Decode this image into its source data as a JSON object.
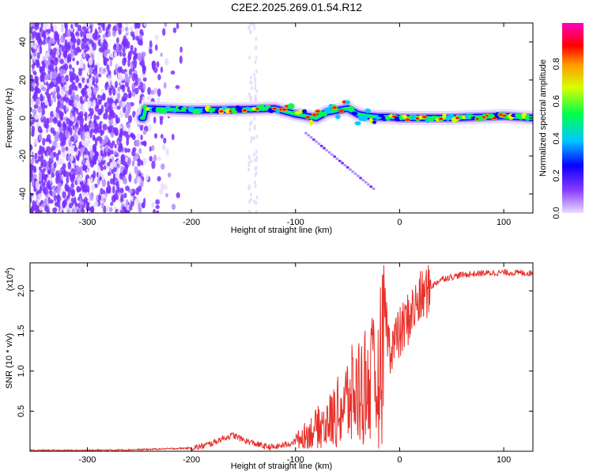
{
  "title": "C2E2.2025.269.01.54.R12",
  "chart_data": [
    {
      "type": "heatmap",
      "xlabel": "Height of straight line (km)",
      "ylabel": "Frequency (Hz)",
      "xlim": [
        -355,
        128
      ],
      "ylim": [
        -50,
        50
      ],
      "xticks": [
        -300,
        -200,
        -100,
        0,
        100
      ],
      "yticks": [
        -40,
        -20,
        0,
        20,
        40
      ],
      "colorbar": {
        "label": "Normalized spectral amplitude",
        "range": [
          0,
          1
        ],
        "ticks": [
          "0.0",
          "0.2",
          "0.4",
          "0.6",
          "0.8"
        ]
      },
      "colors": [
        "#ffffff",
        "#e9dcff",
        "#b58dff",
        "#7a2fff",
        "#0a00ff",
        "#00c8ff",
        "#00ff4c",
        "#d8ff00",
        "#ff9a00",
        "#ff0000",
        "#ff00c0"
      ],
      "ridge": {
        "x": [
          -245,
          -200,
          -150,
          -120,
          -100,
          -90,
          -80,
          -70,
          -60,
          -50,
          -40,
          -30,
          -20,
          -10,
          0,
          20,
          50,
          100,
          128
        ],
        "y": [
          5,
          4,
          4.5,
          5,
          2,
          1,
          0,
          3,
          4,
          5,
          2,
          1,
          0.5,
          0.5,
          0,
          0,
          0,
          1,
          0
        ]
      }
    },
    {
      "type": "line",
      "xlabel": "Height of straight line (km)",
      "ylabel": "SNR (10 * v/v)",
      "multiplier": "(x10",
      "multiplier_exp": "4",
      "xlim": [
        -355,
        128
      ],
      "ylim": [
        0,
        2.35
      ],
      "xticks": [
        -300,
        -200,
        -100,
        0,
        100
      ],
      "yticks": [
        0.5,
        1.0,
        1.5,
        2.0
      ],
      "ytick_labels": [
        "0.5",
        "1.0",
        "1.5",
        "2.0"
      ],
      "color": "#e8302a",
      "series": [
        {
          "name": "SNR",
          "x": [
            -355,
            -300,
            -250,
            -200,
            -190,
            -180,
            -170,
            -160,
            -150,
            -140,
            -130,
            -120,
            -110,
            -100,
            -90,
            -80,
            -70,
            -60,
            -50,
            -40,
            -30,
            -20,
            -15,
            -10,
            0,
            10,
            20,
            30,
            40,
            60,
            80,
            100,
            128
          ],
          "y": [
            0.01,
            0.01,
            0.02,
            0.04,
            0.06,
            0.1,
            0.16,
            0.2,
            0.14,
            0.1,
            0.06,
            0.05,
            0.08,
            0.12,
            0.22,
            0.32,
            0.4,
            0.55,
            0.75,
            0.9,
            1.05,
            1.0,
            1.9,
            1.3,
            1.45,
            1.7,
            1.9,
            2.05,
            2.15,
            2.2,
            2.22,
            2.23,
            2.22
          ]
        }
      ]
    }
  ]
}
